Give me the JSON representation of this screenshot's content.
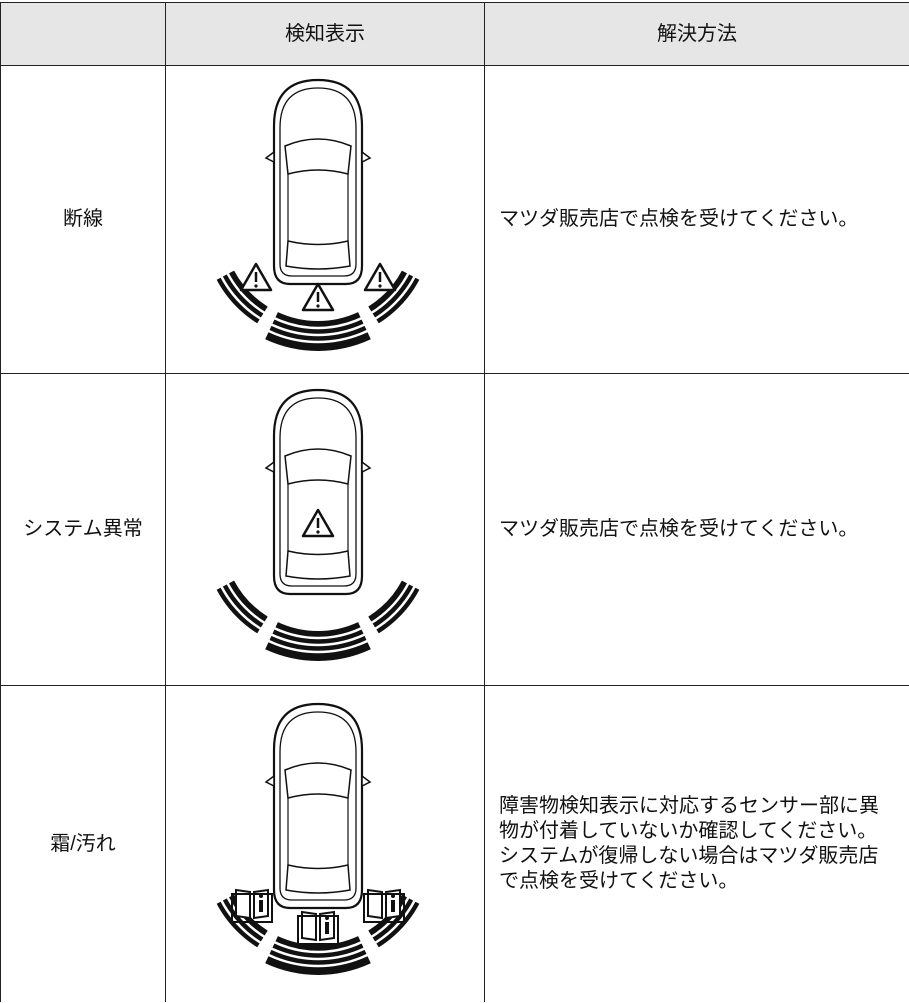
{
  "header": {
    "columns": [
      "検知表示",
      "解決方法"
    ]
  },
  "rows": [
    {
      "label": "断線",
      "solution": "マツダ販売店で点検を受けてください。"
    },
    {
      "label": "システム異常",
      "solution": "マツダ販売店で点検を受けてください。"
    },
    {
      "label": "霜/汚れ",
      "solution": "障害物検知表示に対応するセンサー部に異物が付着していないか確認してください。システムが復帰しない場合はマツダ販売店で点検を受けてください。"
    }
  ]
}
